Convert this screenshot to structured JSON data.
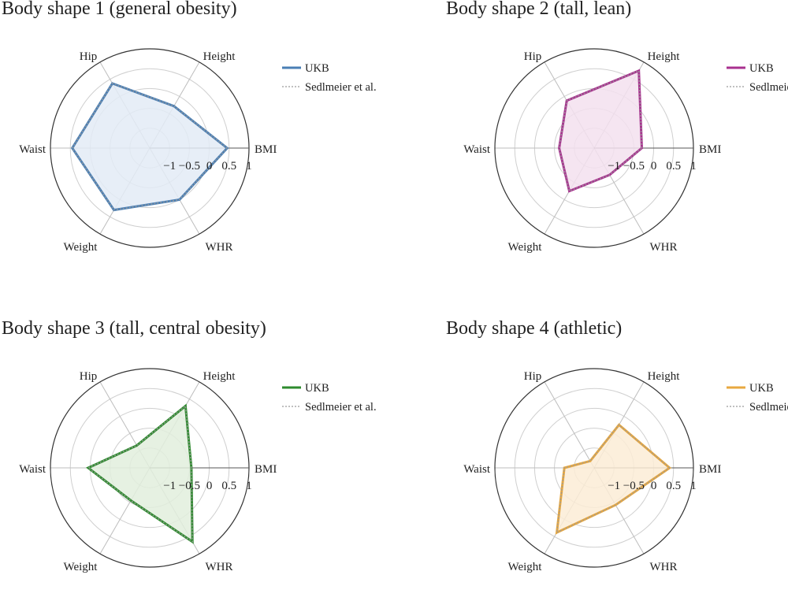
{
  "axes": [
    "BMI",
    "Height",
    "Hip",
    "Waist",
    "Weight",
    "WHR"
  ],
  "radial_ticks": [
    "−1",
    "−0.5",
    "0",
    "0.5",
    "1"
  ],
  "chart_data": [
    {
      "type": "radar",
      "title": "Body shape 1 (general obesity)",
      "color": "#4a7fb5",
      "fill": "#e3ebf6",
      "rlim": [
        -1.5,
        1
      ],
      "series": [
        {
          "name": "UKB",
          "style": "solid",
          "values": [
            0.45,
            -0.28,
            0.38,
            0.45,
            0.3,
            0.0
          ]
        },
        {
          "name": "Sedlmeier et al.",
          "style": "dotted",
          "values": [
            0.45,
            -0.28,
            0.38,
            0.45,
            0.3,
            0.0
          ]
        }
      ]
    },
    {
      "type": "radar",
      "title": "Body shape 2 (tall, lean)",
      "color": "#a8308f",
      "fill": "#f3e0ef",
      "rlim": [
        -1.5,
        1
      ],
      "series": [
        {
          "name": "UKB",
          "style": "solid",
          "values": [
            -0.3,
            0.75,
            -0.12,
            -0.62,
            -0.25,
            -0.72
          ]
        },
        {
          "name": "Sedlmeier et al.",
          "style": "dotted",
          "values": [
            -0.3,
            0.75,
            -0.12,
            -0.62,
            -0.25,
            -0.72
          ]
        }
      ]
    },
    {
      "type": "radar",
      "title": "Body shape 3 (tall, central obesity)",
      "color": "#2e8b2e",
      "fill": "#e2eedd",
      "rlim": [
        -1.5,
        1
      ],
      "series": [
        {
          "name": "UKB",
          "style": "solid",
          "values": [
            -0.45,
            0.3,
            -0.85,
            0.05,
            -0.55,
            0.65
          ]
        },
        {
          "name": "Sedlmeier et al.",
          "style": "dotted",
          "values": [
            -0.45,
            0.3,
            -0.85,
            0.05,
            -0.55,
            0.65
          ]
        }
      ]
    },
    {
      "type": "radar",
      "title": "Body shape 4 (athletic)",
      "color": "#e8a840",
      "fill": "#fbecd6",
      "rlim": [
        -1.5,
        1
      ],
      "series": [
        {
          "name": "UKB",
          "style": "solid",
          "values": [
            0.4,
            -0.25,
            -1.3,
            -0.75,
            0.38,
            -0.42
          ]
        },
        {
          "name": "Sedlmeier et al.",
          "style": "dotted",
          "values": [
            0.4,
            -0.25,
            -1.3,
            -0.75,
            0.38,
            -0.42
          ]
        }
      ]
    }
  ]
}
